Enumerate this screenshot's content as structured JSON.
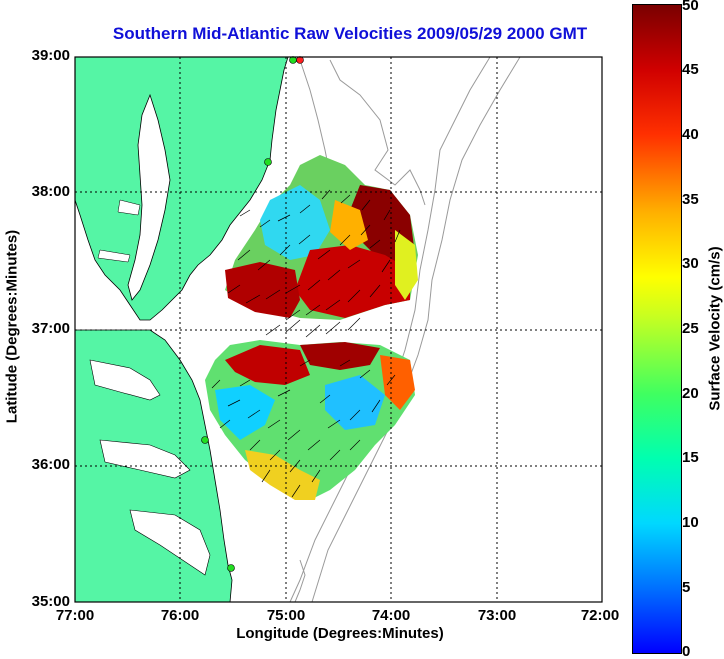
{
  "title": "Southern Mid-Atlantic Raw Velocities 2009/05/29 2000 GMT",
  "x_axis_label": "Longitude (Degrees:Minutes)",
  "y_axis_label": "Latitude (Degrees:Minutes)",
  "x_ticks": [
    "77:00",
    "76:00",
    "75:00",
    "74:00",
    "73:00",
    "72:00"
  ],
  "y_ticks": [
    "39:00",
    "38:00",
    "37:00",
    "36:00",
    "35:00"
  ],
  "colorbar": {
    "label": "Surface Velocity (cm/s)",
    "ticks": [
      "50",
      "45",
      "40",
      "35",
      "30",
      "25",
      "20",
      "15",
      "10",
      "5",
      "0"
    ],
    "range": [
      0,
      50
    ]
  },
  "colors": {
    "land": "#55f5a5",
    "title": "#1010d8",
    "station": "#22dd22",
    "station_red": "#ff2020"
  }
}
